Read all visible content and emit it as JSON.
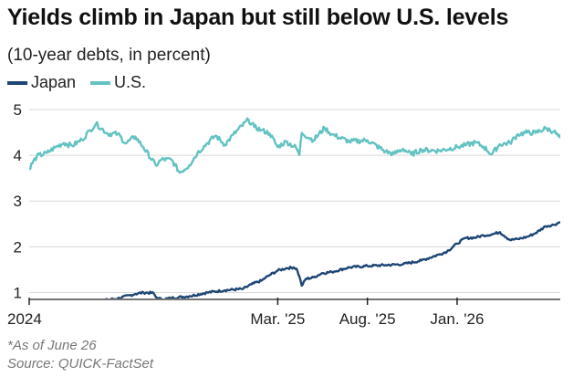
{
  "title": "Yields climb in Japan but still below U.S. levels",
  "subtitle": "(10-year debts, in percent)",
  "footnote": "*As of June 26",
  "source": "Source: QUICK-FactSet",
  "colors": {
    "japan": "#1d4574",
    "us": "#63c2c2",
    "grid": "#d8d8d8",
    "axis": "#222222"
  },
  "chart_data": {
    "type": "line",
    "legend_position": "top-left",
    "ylim": [
      0.85,
      5.1
    ],
    "yticks": [
      1,
      2,
      3,
      4,
      5
    ],
    "xlim": [
      "2024-01-02",
      "2026-06-26"
    ],
    "xticks": [
      {
        "label": "2024",
        "date": "2024-01-01"
      },
      {
        "label": "Mar. '25",
        "date": "2025-03-01"
      },
      {
        "label": "Aug. '25",
        "date": "2025-08-01"
      },
      {
        "label": "Jan. '26",
        "date": "2026-01-01"
      }
    ],
    "grid": true,
    "series": [
      {
        "name": "Japan",
        "x": [
          "2024-01-02",
          "2024-01-15",
          "2024-02-01",
          "2024-02-15",
          "2024-03-01",
          "2024-03-15",
          "2024-04-01",
          "2024-05-01",
          "2024-06-01",
          "2024-07-01",
          "2024-07-15",
          "2024-08-01",
          "2024-08-05",
          "2024-08-15",
          "2024-09-01",
          "2024-10-01",
          "2024-11-01",
          "2024-12-01",
          "2025-01-01",
          "2025-01-15",
          "2025-02-01",
          "2025-02-15",
          "2025-03-01",
          "2025-03-15",
          "2025-03-28",
          "2025-04-02",
          "2025-04-07",
          "2025-04-11",
          "2025-04-18",
          "2025-05-01",
          "2025-05-15",
          "2025-06-01",
          "2025-07-01",
          "2025-08-01",
          "2025-09-01",
          "2025-10-01",
          "2025-11-01",
          "2025-12-01",
          "2025-12-15",
          "2026-01-01",
          "2026-01-15",
          "2026-02-01",
          "2026-02-15",
          "2026-03-01",
          "2026-03-15",
          "2026-04-01",
          "2026-04-15",
          "2026-05-01",
          "2026-05-15",
          "2026-06-01",
          "2026-06-15",
          "2026-06-26"
        ],
        "values": [
          0.6,
          0.7,
          0.74,
          0.72,
          0.74,
          0.76,
          0.76,
          0.82,
          0.87,
          0.97,
          1.0,
          0.99,
          0.9,
          0.85,
          0.88,
          0.92,
          1.0,
          1.05,
          1.08,
          1.18,
          1.26,
          1.38,
          1.48,
          1.53,
          1.55,
          1.52,
          1.35,
          1.15,
          1.3,
          1.33,
          1.42,
          1.45,
          1.55,
          1.58,
          1.6,
          1.62,
          1.7,
          1.83,
          1.9,
          2.07,
          2.19,
          2.2,
          2.25,
          2.27,
          2.32,
          2.15,
          2.17,
          2.22,
          2.3,
          2.45,
          2.48,
          2.54
        ]
      },
      {
        "name": "U.S.",
        "x": [
          "2024-01-02",
          "2024-01-15",
          "2024-02-01",
          "2024-02-15",
          "2024-03-01",
          "2024-03-15",
          "2024-04-01",
          "2024-04-15",
          "2024-04-25",
          "2024-05-15",
          "2024-06-01",
          "2024-06-15",
          "2024-07-01",
          "2024-07-15",
          "2024-08-05",
          "2024-08-15",
          "2024-09-01",
          "2024-09-15",
          "2024-10-01",
          "2024-10-15",
          "2024-11-01",
          "2024-11-15",
          "2024-12-01",
          "2024-12-15",
          "2025-01-10",
          "2025-01-20",
          "2025-02-01",
          "2025-02-15",
          "2025-03-01",
          "2025-03-15",
          "2025-04-01",
          "2025-04-07",
          "2025-04-11",
          "2025-05-01",
          "2025-05-20",
          "2025-06-01",
          "2025-07-01",
          "2025-08-01",
          "2025-09-01",
          "2025-09-15",
          "2025-10-01",
          "2025-10-15",
          "2025-11-01",
          "2025-12-01",
          "2026-01-01",
          "2026-01-15",
          "2026-02-01",
          "2026-02-15",
          "2026-03-01",
          "2026-03-15",
          "2026-04-01",
          "2026-04-15",
          "2026-05-01",
          "2026-05-15",
          "2026-06-01",
          "2026-06-15",
          "2026-06-26"
        ],
        "values": [
          3.72,
          3.98,
          4.05,
          4.17,
          4.27,
          4.21,
          4.34,
          4.55,
          4.69,
          4.47,
          4.47,
          4.26,
          4.41,
          4.17,
          3.78,
          3.91,
          3.9,
          3.62,
          3.78,
          4.05,
          4.27,
          4.43,
          4.23,
          4.45,
          4.78,
          4.62,
          4.55,
          4.48,
          4.18,
          4.3,
          4.17,
          4.01,
          4.49,
          4.33,
          4.6,
          4.46,
          4.3,
          4.33,
          4.08,
          4.03,
          4.14,
          4.02,
          4.12,
          4.1,
          4.18,
          4.22,
          4.28,
          4.19,
          4.02,
          4.24,
          4.27,
          4.46,
          4.5,
          4.49,
          4.59,
          4.52,
          4.37
        ]
      }
    ]
  }
}
